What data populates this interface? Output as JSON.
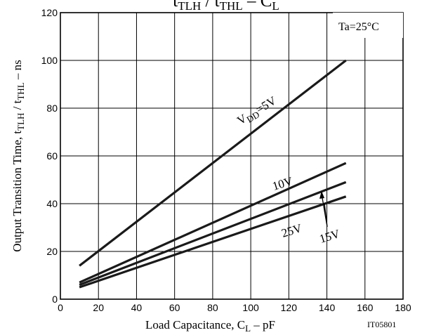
{
  "chart_data": {
    "type": "line",
    "title_main_a": "t",
    "title_sub_a": "TLH",
    "title_mid": " / t",
    "title_sub_b": "THL",
    "title_mid2": "  –  C",
    "title_sub_c": "L",
    "ylabel": "Output Transition Time, t",
    "ylabel_sub1": "TLH",
    "ylabel_mid": " / t",
    "ylabel_sub2": "THL",
    "ylabel_unit": "  –  ns",
    "xlabel": "Load Capacitance, C",
    "xlabel_sub": "L",
    "xlabel_unit": "  –  pF",
    "annotation_condition": "Ta=25°C",
    "figure_code": "IT05801",
    "xlim": [
      0,
      180
    ],
    "ylim": [
      0,
      120
    ],
    "x_ticks": [
      0,
      20,
      40,
      60,
      80,
      100,
      120,
      140,
      160,
      180
    ],
    "y_ticks": [
      0,
      20,
      40,
      60,
      80,
      100,
      120
    ],
    "grid": true,
    "series": [
      {
        "name": "VDD=5V",
        "x": [
          10,
          150
        ],
        "y": [
          14,
          100
        ]
      },
      {
        "name": "10V",
        "x": [
          10,
          150
        ],
        "y": [
          7,
          57
        ]
      },
      {
        "name": "15V",
        "x": [
          10,
          150
        ],
        "y": [
          6,
          49
        ]
      },
      {
        "name": "25V",
        "x": [
          10,
          150
        ],
        "y": [
          5,
          43
        ]
      }
    ],
    "series_labels": {
      "vdd_main": "V",
      "vdd_sub": "DD",
      "vdd_rest": "=5V",
      "s10": "10V",
      "s15": "15V",
      "s25": "25V"
    }
  }
}
